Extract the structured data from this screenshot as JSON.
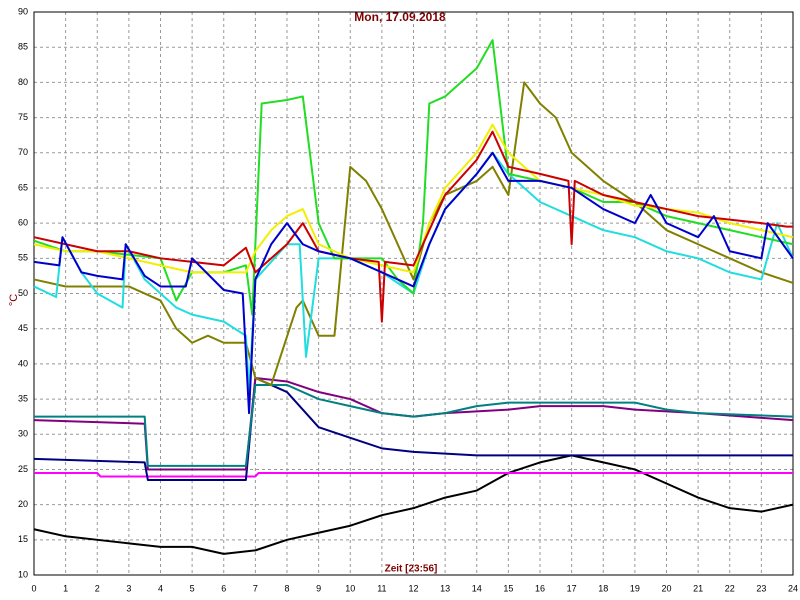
{
  "chart_data": {
    "type": "line",
    "title": "Mon, 17.09.2018",
    "xlabel": "Zeit [23:56]",
    "ylabel": "°C",
    "xlim": [
      0,
      24
    ],
    "ylim": [
      10,
      90
    ],
    "xticks": [
      0,
      1,
      2,
      3,
      4,
      5,
      6,
      7,
      8,
      9,
      10,
      11,
      12,
      13,
      14,
      15,
      16,
      17,
      18,
      19,
      20,
      21,
      22,
      23,
      24
    ],
    "yticks": [
      10,
      15,
      20,
      25,
      30,
      35,
      40,
      45,
      50,
      55,
      60,
      65,
      70,
      75,
      80,
      85,
      90
    ],
    "grid": true,
    "series": [
      {
        "color": "#000000",
        "x": [
          0,
          1,
          2,
          3,
          4,
          5,
          6,
          7,
          8,
          9,
          10,
          11,
          12,
          13,
          14,
          15,
          16,
          17,
          18,
          19,
          20,
          21,
          22,
          23,
          24
        ],
        "values": [
          16.5,
          15.5,
          15,
          14.5,
          14,
          14,
          13,
          13.5,
          15,
          16,
          17,
          18.5,
          19.5,
          21,
          22,
          24.5,
          26,
          27,
          26,
          25,
          23,
          21,
          19.5,
          19,
          20
        ]
      },
      {
        "color": "#ff00ff",
        "x": [
          0,
          2,
          2.1,
          7,
          7.1,
          24
        ],
        "values": [
          24.5,
          24.5,
          24,
          24,
          24.5,
          24.5
        ]
      },
      {
        "color": "#000080",
        "x": [
          0,
          3.5,
          3.6,
          6.7,
          7,
          8,
          9,
          10,
          11,
          12,
          14,
          24
        ],
        "values": [
          26.5,
          26,
          23.5,
          23.5,
          38,
          36,
          31,
          29.5,
          28,
          27.5,
          27,
          27
        ]
      },
      {
        "color": "#800080",
        "x": [
          0,
          3.5,
          3.6,
          6.7,
          7,
          8,
          9,
          10,
          11,
          12,
          13,
          15,
          16,
          18,
          19,
          21,
          24
        ],
        "values": [
          32,
          31.5,
          25,
          25,
          38,
          37.5,
          36,
          35,
          33,
          32.5,
          33,
          33.5,
          34,
          34,
          33.5,
          33,
          32
        ]
      },
      {
        "color": "#008080",
        "x": [
          0,
          3.5,
          3.6,
          6.7,
          7,
          8,
          9,
          10,
          11,
          12,
          13,
          14,
          15,
          19,
          20,
          21,
          24
        ],
        "values": [
          32.5,
          32.5,
          25.5,
          25.5,
          37,
          37,
          35,
          34,
          33,
          32.5,
          33,
          34,
          34.5,
          34.5,
          33.5,
          33,
          32.5
        ]
      },
      {
        "color": "#808000",
        "x": [
          0,
          1,
          2,
          3,
          4,
          4.5,
          5,
          5.5,
          6,
          6.7,
          7,
          7.5,
          8.3,
          8.5,
          9,
          9.5,
          10,
          10.5,
          11,
          12,
          12.5,
          13,
          14,
          14.5,
          15,
          15.5,
          16,
          16.5,
          17,
          18,
          19,
          20,
          21,
          22,
          23,
          24
        ],
        "values": [
          52,
          51,
          51,
          51,
          49,
          45,
          43,
          44,
          43,
          43,
          38,
          37,
          48,
          49,
          44,
          44,
          68,
          66,
          62,
          52,
          60,
          64,
          66,
          68,
          64,
          80,
          77,
          75,
          70,
          66,
          63,
          59,
          57,
          55,
          53,
          51.5
        ]
      },
      {
        "color": "#22dddd",
        "x": [
          0,
          0.7,
          0.9,
          1.5,
          2,
          2.8,
          2.9,
          3.5,
          4.5,
          5,
          6,
          6.7,
          6.8,
          7,
          8,
          8.4,
          8.6,
          9,
          10,
          11,
          12,
          12.5,
          13,
          14,
          14.5,
          15,
          16,
          17,
          18,
          19,
          20,
          21,
          22,
          23,
          23.5,
          24
        ],
        "values": [
          51,
          49.5,
          58,
          53,
          50,
          48,
          57,
          52,
          48,
          47,
          46,
          44,
          36,
          52,
          57,
          57,
          41,
          55,
          55,
          53,
          50,
          57,
          62,
          67,
          70,
          67,
          63,
          61,
          59,
          58,
          56,
          55,
          53,
          52,
          60,
          55
        ]
      },
      {
        "color": "#22dd22",
        "x": [
          0,
          1,
          2,
          3,
          4,
          4.5,
          5,
          6,
          6.7,
          6.9,
          7.2,
          8,
          8.5,
          9,
          9.5,
          10,
          11,
          11.5,
          12,
          12.3,
          12.5,
          13,
          13.5,
          14,
          14.5,
          15,
          16,
          17,
          18,
          19,
          20,
          21,
          22,
          23,
          24
        ],
        "values": [
          57.5,
          56,
          56,
          55.5,
          55,
          49,
          53,
          53,
          54,
          47,
          77,
          77.5,
          78,
          60,
          55,
          55,
          55,
          52,
          50,
          60,
          77,
          78,
          80,
          82,
          86,
          67,
          66,
          65,
          63,
          63,
          61,
          60,
          59,
          58,
          57
        ]
      },
      {
        "color": "#f0f000",
        "x": [
          0,
          1,
          2,
          3,
          4,
          5,
          6,
          6.7,
          7,
          7.5,
          8,
          8.5,
          9,
          10,
          11,
          12,
          12.5,
          13,
          14,
          14.5,
          15,
          16,
          17,
          18,
          19,
          20,
          21,
          22,
          23,
          24
        ],
        "values": [
          57,
          56,
          56,
          55,
          54,
          53,
          53,
          53,
          56,
          59,
          61,
          62,
          57,
          55,
          54,
          53,
          60,
          65,
          70,
          74,
          70,
          66,
          65,
          64,
          62.5,
          62,
          61.5,
          60,
          59,
          58
        ]
      },
      {
        "color": "#cc0000",
        "x": [
          0,
          1,
          2,
          3,
          4,
          5,
          6,
          6.7,
          7,
          8,
          8.5,
          9,
          10,
          10.9,
          11,
          11.1,
          12,
          12.5,
          13,
          14,
          14.5,
          15,
          16,
          16.9,
          17,
          17.1,
          18,
          19,
          20,
          21,
          22,
          23,
          23.8,
          24
        ],
        "values": [
          58,
          57,
          56,
          56,
          55,
          54.5,
          54,
          56.5,
          53,
          57,
          60,
          56,
          55,
          54.5,
          46,
          54.5,
          54,
          59,
          64,
          69,
          73,
          68,
          67,
          66,
          57,
          66,
          64,
          63,
          62,
          61,
          60.5,
          60,
          59.5,
          59.5
        ]
      },
      {
        "color": "#0000cc",
        "x": [
          0,
          0.8,
          0.9,
          1.5,
          2,
          2.8,
          2.9,
          3.5,
          4,
          4.8,
          5,
          6,
          6.6,
          6.8,
          7,
          7.5,
          8,
          8.5,
          9,
          10,
          11,
          12,
          12.5,
          13,
          14,
          14.5,
          15,
          16,
          17,
          18,
          19,
          19.5,
          20,
          21,
          21.5,
          22,
          23,
          23.2,
          24
        ],
        "values": [
          54.5,
          54,
          58,
          53,
          52.5,
          52,
          57,
          52.5,
          51,
          51,
          55,
          50.5,
          50,
          33,
          52,
          57,
          60,
          57,
          56,
          55,
          53,
          51,
          57,
          62,
          67,
          70,
          66,
          66,
          65,
          62,
          60,
          64,
          60,
          58,
          61,
          56,
          55,
          60,
          55
        ]
      }
    ]
  }
}
